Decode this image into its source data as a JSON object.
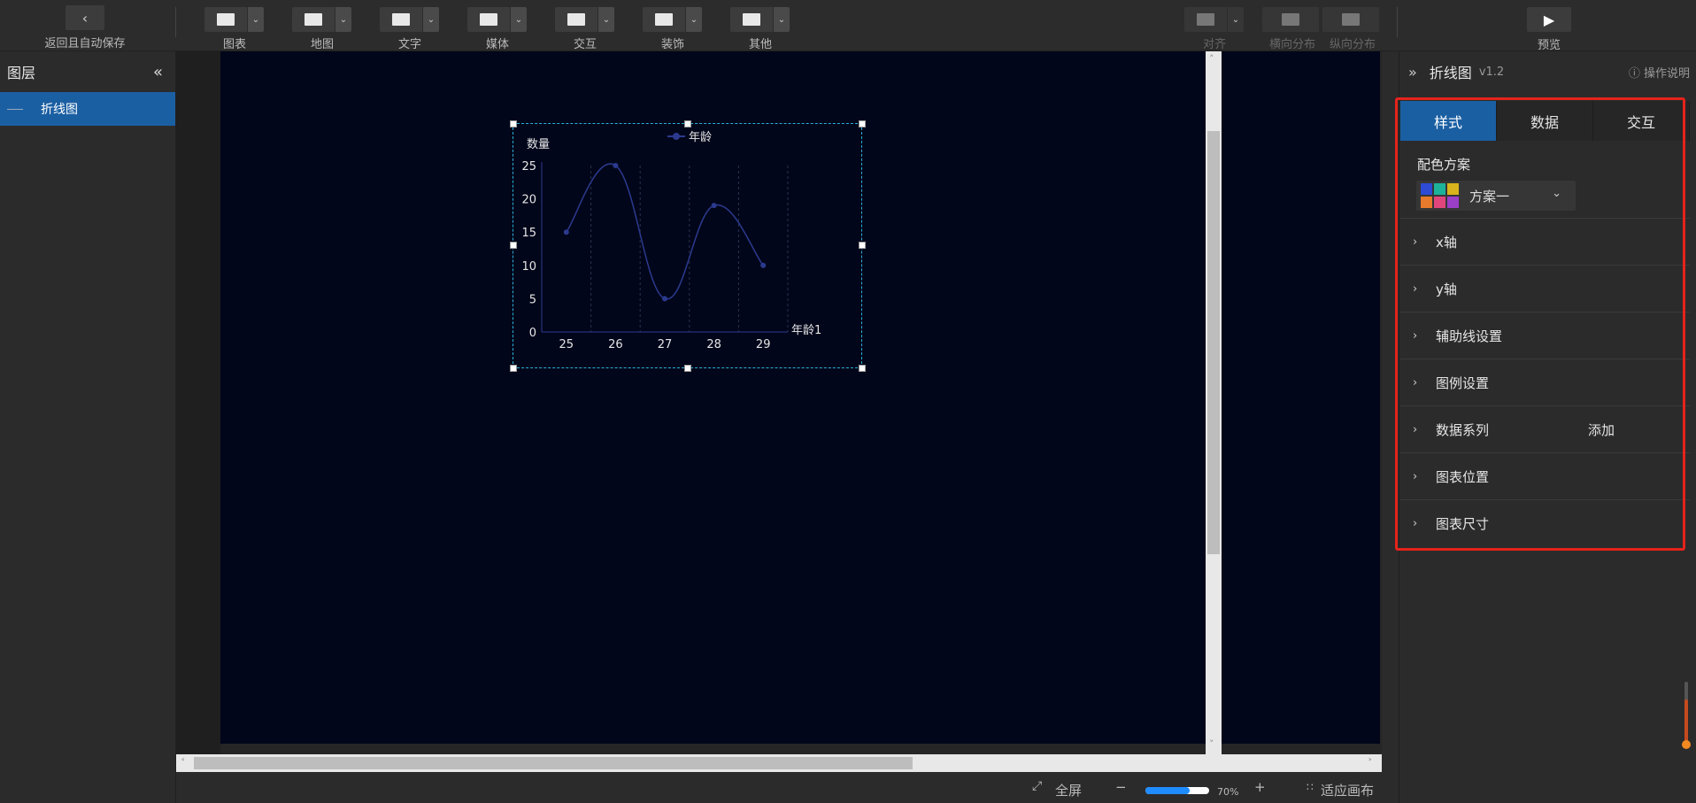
{
  "toolbar": {
    "back_label": "返回且自动保存",
    "groups": [
      {
        "label": "图表"
      },
      {
        "label": "地图"
      },
      {
        "label": "文字"
      },
      {
        "label": "媒体"
      },
      {
        "label": "交互"
      },
      {
        "label": "装饰"
      },
      {
        "label": "其他"
      }
    ],
    "align_label": "对齐",
    "hdist_label": "横向分布",
    "vdist_label": "纵向分布",
    "preview_label": "预览"
  },
  "layers": {
    "title": "图层",
    "items": [
      {
        "label": "折线图"
      }
    ]
  },
  "bottom": {
    "fullscreen": "全屏",
    "minus": "−",
    "zoom": "70%",
    "plus": "+",
    "fit": "适应画布"
  },
  "inspector": {
    "title": "折线图",
    "version": "v1.2",
    "help": "操作说明",
    "tabs": [
      "样式",
      "数据",
      "交互"
    ],
    "scheme_label": "配色方案",
    "scheme_value": "方案一",
    "scheme_colors": [
      "#2d4bd4",
      "#1db39b",
      "#d9b41c",
      "#e87a2b",
      "#e0467c",
      "#9a3fc7"
    ],
    "sections": [
      {
        "label": "x轴"
      },
      {
        "label": "y轴"
      },
      {
        "label": "辅助线设置"
      },
      {
        "label": "图例设置"
      },
      {
        "label": "数据系列",
        "extra": "添加"
      },
      {
        "label": "图表位置"
      },
      {
        "label": "图表尺寸"
      }
    ]
  },
  "chart_data": {
    "type": "line",
    "smooth": true,
    "legend": {
      "entries": [
        "年龄"
      ],
      "position": "top-center"
    },
    "ylabel": "数量",
    "xlabel": "年龄1",
    "categories": [
      "25",
      "26",
      "27",
      "28",
      "29"
    ],
    "series": [
      {
        "name": "年龄",
        "values": [
          15,
          25,
          5,
          19,
          10
        ],
        "color": "#2b3a8f"
      }
    ],
    "ylim": [
      0,
      25
    ],
    "yticks": [
      0,
      5,
      10,
      15,
      20,
      25
    ],
    "grid": "vertical dashed"
  }
}
